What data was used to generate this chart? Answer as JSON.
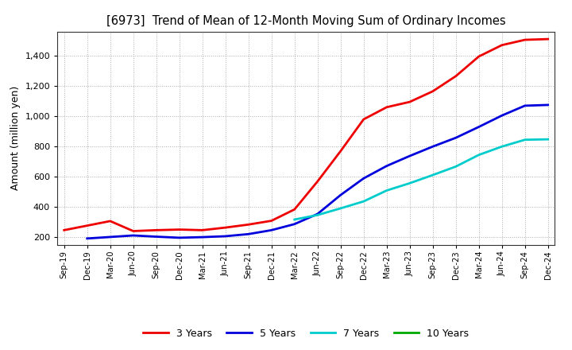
{
  "title": "[6973]  Trend of Mean of 12-Month Moving Sum of Ordinary Incomes",
  "ylabel": "Amount (million yen)",
  "background_color": "#ffffff",
  "grid_color": "#999999",
  "yticks": [
    200,
    400,
    600,
    800,
    1000,
    1200,
    1400
  ],
  "ylim": [
    150,
    1560
  ],
  "x_labels": [
    "Sep-19",
    "Dec-19",
    "Mar-20",
    "Jun-20",
    "Sep-20",
    "Dec-20",
    "Mar-21",
    "Jun-21",
    "Sep-21",
    "Dec-21",
    "Mar-22",
    "Jun-22",
    "Sep-22",
    "Dec-22",
    "Mar-23",
    "Jun-23",
    "Sep-23",
    "Dec-23",
    "Mar-24",
    "Jun-24",
    "Sep-24",
    "Dec-24"
  ],
  "series": {
    "3 Years": {
      "color": "#ee0000",
      "linewidth": 2.0,
      "data_x": [
        0,
        1,
        2,
        3,
        4,
        5,
        6,
        7,
        8,
        9,
        10,
        11,
        12,
        13,
        14,
        15,
        16,
        17,
        18,
        19,
        20,
        21
      ],
      "data_y": [
        248,
        278,
        308,
        242,
        248,
        252,
        248,
        265,
        285,
        310,
        385,
        570,
        770,
        980,
        1060,
        1095,
        1165,
        1265,
        1395,
        1470,
        1505,
        1510
      ]
    },
    "5 Years": {
      "color": "#0000dd",
      "linewidth": 2.0,
      "data_x": [
        1,
        2,
        3,
        4,
        5,
        6,
        7,
        8,
        9,
        10,
        11,
        12,
        13,
        14,
        15,
        16,
        17,
        18,
        19,
        20,
        21
      ],
      "data_y": [
        193,
        203,
        213,
        205,
        198,
        202,
        208,
        222,
        248,
        288,
        355,
        480,
        590,
        672,
        738,
        800,
        858,
        930,
        1005,
        1070,
        1075
      ]
    },
    "7 Years": {
      "color": "#00cccc",
      "linewidth": 2.0,
      "data_x": [
        10,
        11,
        12,
        13,
        14,
        15,
        16,
        17,
        18,
        19,
        20,
        21
      ],
      "data_y": [
        318,
        348,
        392,
        438,
        510,
        558,
        612,
        668,
        745,
        800,
        845,
        848
      ]
    },
    "10 Years": {
      "color": "#00aa00",
      "linewidth": 2.0,
      "data_x": [],
      "data_y": []
    }
  },
  "legend_labels": [
    "3 Years",
    "5 Years",
    "7 Years",
    "10 Years"
  ],
  "legend_colors": [
    "#ee0000",
    "#0000dd",
    "#00cccc",
    "#00aa00"
  ]
}
